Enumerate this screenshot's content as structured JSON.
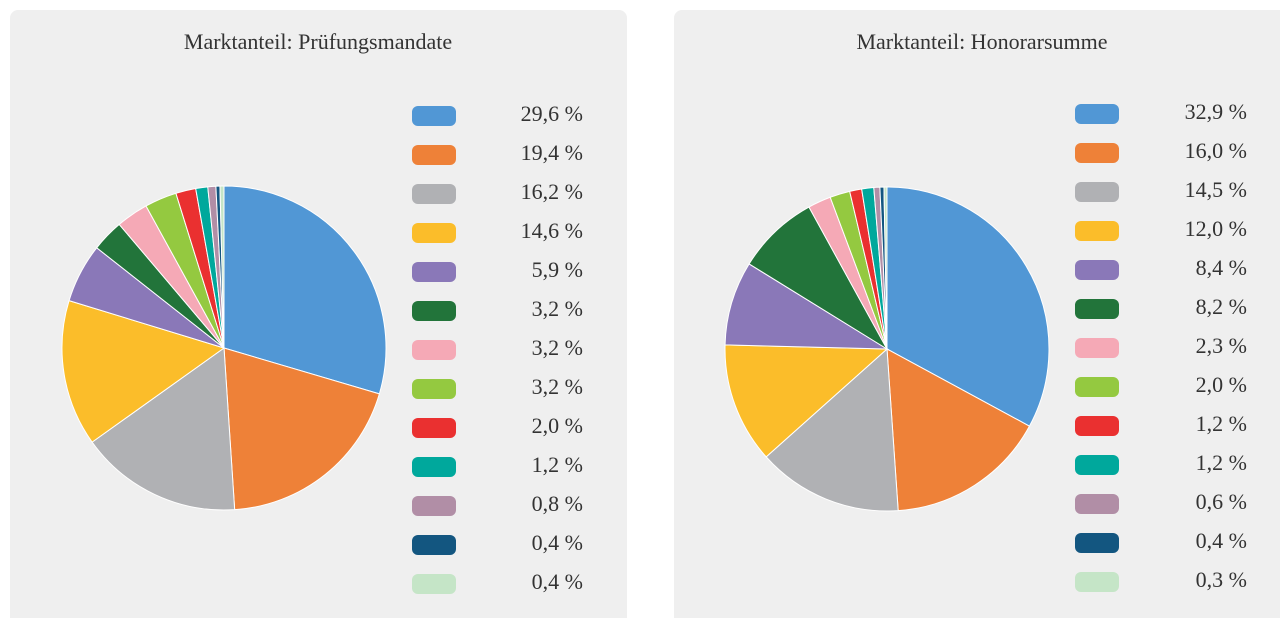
{
  "chart_data": [
    {
      "type": "pie",
      "title": "Marktanteil: Prüfungsmandate",
      "values": [
        29.6,
        19.4,
        16.2,
        14.6,
        5.9,
        3.2,
        3.2,
        3.2,
        2.0,
        1.2,
        0.8,
        0.4,
        0.4
      ],
      "value_labels": [
        "29,6 %",
        "19,4 %",
        "16,2 %",
        "14,6 %",
        "5,9 %",
        "3,2 %",
        "3,2 %",
        "3,2 %",
        "2,0 %",
        "1,2 %",
        "0,8 %",
        "0,4 %",
        "0,4 %"
      ],
      "colors": [
        "#5197d5",
        "#ee8138",
        "#b0b1b4",
        "#fbbd2a",
        "#8a78b8",
        "#22743a",
        "#f5a9b6",
        "#94c940",
        "#ea3030",
        "#00a89c",
        "#b18ea6",
        "#135680",
        "#c5e5c7"
      ]
    },
    {
      "type": "pie",
      "title": "Marktanteil: Honorarsumme",
      "values": [
        32.9,
        16.0,
        14.5,
        12.0,
        8.4,
        8.2,
        2.3,
        2.0,
        1.2,
        1.2,
        0.6,
        0.4,
        0.3
      ],
      "value_labels": [
        "32,9 %",
        "16,0 %",
        "14,5 %",
        "12,0 %",
        "8,4 %",
        "8,2 %",
        "2,3 %",
        "2,0 %",
        "1,2 %",
        "1,2 %",
        "0,6 %",
        "0,4 %",
        "0,3 %"
      ],
      "colors": [
        "#5197d5",
        "#ee8138",
        "#b0b1b4",
        "#fbbd2a",
        "#8a78b8",
        "#22743a",
        "#f5a9b6",
        "#94c940",
        "#ea3030",
        "#00a89c",
        "#b18ea6",
        "#135680",
        "#c5e5c7"
      ]
    }
  ]
}
